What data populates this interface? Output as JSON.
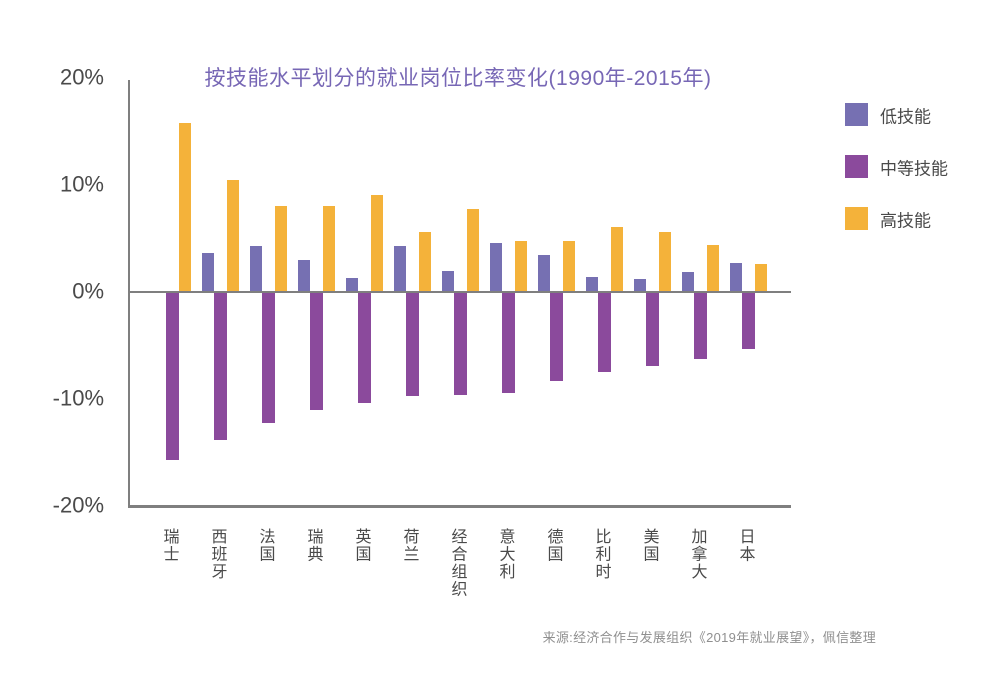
{
  "colors": {
    "low": "#7670b2",
    "medium": "#8b4a9c",
    "high": "#f4b23a",
    "title_text": "#7767b5",
    "axis_line": "#7f7f7f",
    "axis_text": "#4a4a4a",
    "source_text": "#8f8f8f"
  },
  "source": "来源:经济合作与发展组织《2019年就业展望》，佩信整理",
  "chart_data": {
    "type": "bar",
    "title": "按技能水平划分的就业岗位比率变化(1990年-2015年)",
    "categories": [
      "瑞士",
      "西班牙",
      "法国",
      "瑞典",
      "英国",
      "荷兰",
      "经合组织",
      "意大利",
      "德国",
      "比利时",
      "美国",
      "加拿大",
      "日本"
    ],
    "series": [
      {
        "name": "低技能",
        "key": "low",
        "values": [
          0,
          3.6,
          4.3,
          3.0,
          1.3,
          4.3,
          2.0,
          4.6,
          3.5,
          1.4,
          1.2,
          1.9,
          2.7
        ]
      },
      {
        "name": "中等技能",
        "key": "medium",
        "values": [
          -15.7,
          -13.8,
          -12.2,
          -11.0,
          -10.4,
          -9.7,
          -9.6,
          -9.4,
          -8.3,
          -7.5,
          -6.9,
          -6.3,
          -5.3
        ]
      },
      {
        "name": "高技能",
        "key": "high",
        "values": [
          15.8,
          10.5,
          8.0,
          8.0,
          9.1,
          5.6,
          7.8,
          4.8,
          4.8,
          6.1,
          5.6,
          4.4,
          2.6
        ]
      }
    ],
    "legend": [
      {
        "label": "低技能",
        "key": "low"
      },
      {
        "label": "中等技能",
        "key": "medium"
      },
      {
        "label": "高技能",
        "key": "high"
      }
    ],
    "y_ticks": [
      "20%",
      "10%",
      "0%",
      "-10%",
      "-20%"
    ],
    "y_tick_values": [
      20,
      10,
      0,
      -10,
      -20
    ],
    "ylim": [
      -20,
      20
    ],
    "xlabel": "",
    "ylabel": "",
    "grid": false,
    "legend_position": "right"
  }
}
